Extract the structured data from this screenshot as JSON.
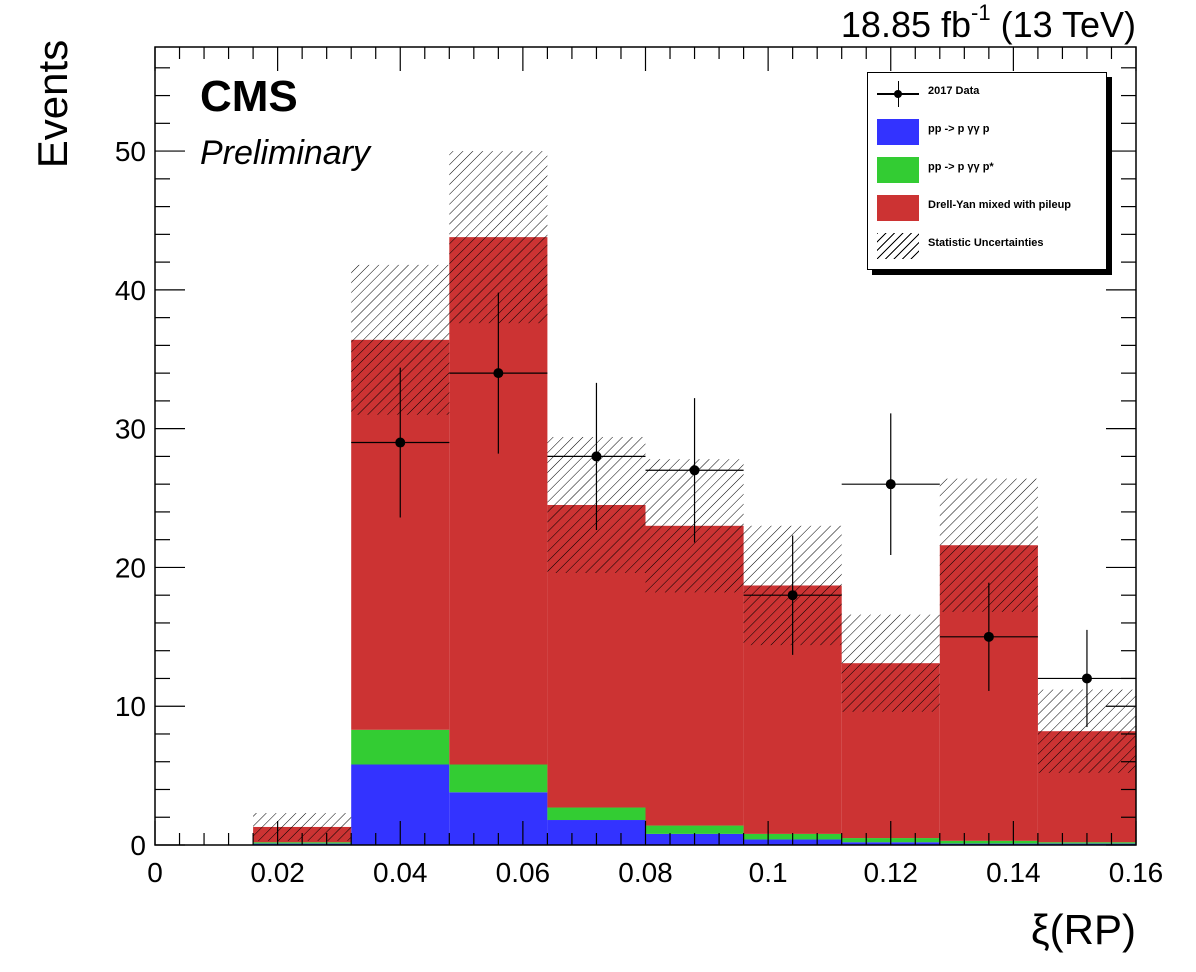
{
  "header": {
    "lumi_value": "18.85 fb",
    "lumi_exp": "-1",
    "lumi_energy": " (13 TeV)",
    "cms": "CMS",
    "preliminary": "Preliminary"
  },
  "chart_data": {
    "type": "bar",
    "stacked": true,
    "xlabel": "ξ(RP)",
    "ylabel": "Events",
    "xlim": [
      0,
      0.16
    ],
    "ylim": [
      0,
      57.5
    ],
    "x_ticks": [
      "0",
      "0.02",
      "0.04",
      "0.06",
      "0.08",
      "0.1",
      "0.12",
      "0.14",
      "0.16"
    ],
    "y_ticks": [
      "0",
      "10",
      "20",
      "30",
      "40",
      "50"
    ],
    "bin_edges": [
      0.016,
      0.032,
      0.048,
      0.064,
      0.08,
      0.096,
      0.112,
      0.128,
      0.144,
      0.16
    ],
    "series": [
      {
        "name": "pp -> p  γγ p",
        "color": "#3333ff",
        "values": [
          0.1,
          5.8,
          3.8,
          1.8,
          0.8,
          0.4,
          0.2,
          0.1,
          0.1
        ]
      },
      {
        "name": "pp -> p  γγ p*",
        "color": "#33cc33",
        "values": [
          0.1,
          2.5,
          2.0,
          0.9,
          0.6,
          0.4,
          0.3,
          0.2,
          0.1
        ]
      },
      {
        "name": "Drell-Yan mixed with pileup",
        "color": "#cc3333",
        "values": [
          1.1,
          28.1,
          38.0,
          21.8,
          21.6,
          17.9,
          12.6,
          21.3,
          8.0
        ]
      }
    ],
    "totals": [
      1.3,
      36.4,
      43.8,
      24.5,
      23.0,
      18.7,
      13.1,
      21.6,
      8.2
    ],
    "stat_uncertainty": [
      1.0,
      5.4,
      6.2,
      4.9,
      4.8,
      4.3,
      3.5,
      4.8,
      3.0
    ],
    "data": {
      "name": "2017 Data",
      "x": [
        0.04,
        0.056,
        0.072,
        0.088,
        0.104,
        0.12,
        0.136,
        0.152
      ],
      "y": [
        29,
        34,
        28,
        27,
        18,
        26,
        15,
        12
      ],
      "yerr": [
        5.4,
        5.8,
        5.3,
        5.2,
        4.3,
        5.1,
        3.9,
        3.5
      ],
      "xerr": 0.008
    },
    "uncertainty_label": "Statistic Uncertainties",
    "legend_position": "top-right"
  }
}
